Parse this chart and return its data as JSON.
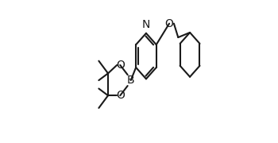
{
  "bg_color": "#ffffff",
  "line_color": "#1a1a1a",
  "line_width": 1.5,
  "font_size": 8.5,
  "label_N": "N",
  "label_O1": "O",
  "label_O2": "O",
  "label_O3": "O",
  "label_B": "B",
  "figw": 3.5,
  "figh": 1.8,
  "dpi": 100
}
